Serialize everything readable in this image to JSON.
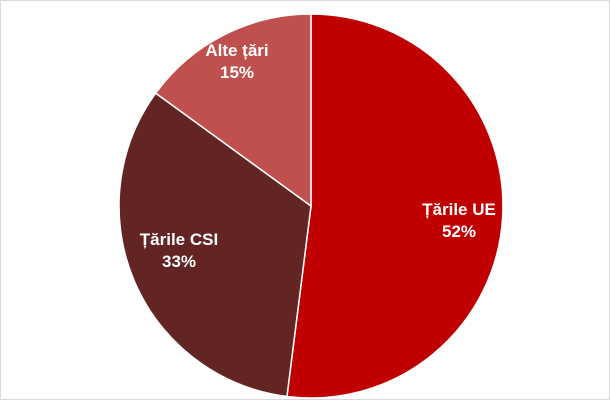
{
  "chart_data": {
    "type": "pie",
    "title": "",
    "start_angle_deg": 0,
    "direction": "clockwise",
    "slices": [
      {
        "label": "Țările UE",
        "value": 52,
        "display": "52%",
        "color": "#c00000"
      },
      {
        "label": "Țările CSI",
        "value": 33,
        "display": "33%",
        "color": "#632523"
      },
      {
        "label": "Alte țări",
        "value": 15,
        "display": "15%",
        "color": "#c0504d"
      }
    ],
    "legend": "none",
    "slice_border_color": "#ffffff"
  }
}
